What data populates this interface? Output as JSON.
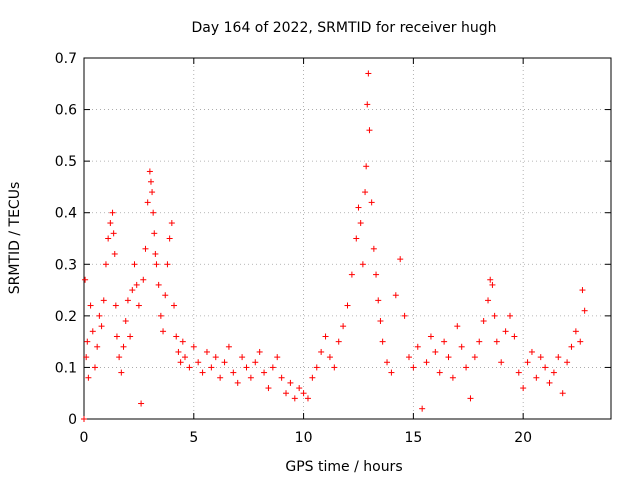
{
  "chart_data": {
    "type": "scatter",
    "title": "Day 164 of 2022, SRMTID for receiver hugh",
    "xlabel": "GPS time / hours",
    "ylabel": "SRMTID / TECUs",
    "xlim": [
      0,
      24
    ],
    "ylim": [
      0,
      0.7
    ],
    "xticks": [
      0,
      5,
      10,
      15,
      20
    ],
    "yticks": [
      0,
      0.1,
      0.2,
      0.3,
      0.4,
      0.5,
      0.6,
      0.7
    ],
    "xtick_labels": [
      "0",
      "5",
      "10",
      "15",
      "20"
    ],
    "ytick_labels": [
      "0",
      "0.1",
      "0.2",
      "0.3",
      "0.4",
      "0.5",
      "0.6",
      "0.7"
    ],
    "grid": true,
    "marker": "+",
    "color": "#ff0000",
    "series": [
      {
        "name": "SRMTID",
        "x": [
          0.0,
          0.05,
          0.1,
          0.15,
          0.2,
          0.3,
          0.4,
          0.5,
          0.6,
          0.7,
          0.8,
          0.9,
          1.0,
          1.1,
          1.2,
          1.3,
          1.35,
          1.4,
          1.45,
          1.5,
          1.6,
          1.7,
          1.8,
          1.9,
          2.0,
          2.1,
          2.2,
          2.3,
          2.4,
          2.5,
          2.6,
          2.7,
          2.8,
          2.9,
          3.0,
          3.05,
          3.1,
          3.15,
          3.2,
          3.25,
          3.3,
          3.4,
          3.5,
          3.6,
          3.7,
          3.8,
          3.9,
          4.0,
          4.1,
          4.2,
          4.3,
          4.4,
          4.5,
          4.6,
          4.8,
          5.0,
          5.2,
          5.4,
          5.6,
          5.8,
          6.0,
          6.2,
          6.4,
          6.6,
          6.8,
          7.0,
          7.2,
          7.4,
          7.6,
          7.8,
          8.0,
          8.2,
          8.4,
          8.6,
          8.8,
          9.0,
          9.2,
          9.4,
          9.6,
          9.8,
          10.0,
          10.2,
          10.4,
          10.6,
          10.8,
          11.0,
          11.2,
          11.4,
          11.6,
          11.8,
          12.0,
          12.2,
          12.4,
          12.5,
          12.6,
          12.7,
          12.8,
          12.85,
          12.9,
          12.95,
          13.0,
          13.1,
          13.2,
          13.3,
          13.4,
          13.5,
          13.6,
          13.8,
          14.0,
          14.2,
          14.4,
          14.6,
          14.8,
          15.0,
          15.2,
          15.4,
          15.6,
          15.8,
          16.0,
          16.2,
          16.4,
          16.6,
          16.8,
          17.0,
          17.2,
          17.4,
          17.6,
          17.8,
          18.0,
          18.2,
          18.4,
          18.5,
          18.6,
          18.7,
          18.8,
          19.0,
          19.2,
          19.4,
          19.6,
          19.8,
          20.0,
          20.2,
          20.4,
          20.6,
          20.8,
          21.0,
          21.2,
          21.4,
          21.6,
          21.8,
          22.0,
          22.2,
          22.4,
          22.6,
          22.7,
          22.8
        ],
        "y": [
          0.0,
          0.27,
          0.12,
          0.15,
          0.08,
          0.22,
          0.17,
          0.1,
          0.14,
          0.2,
          0.18,
          0.23,
          0.3,
          0.35,
          0.38,
          0.4,
          0.36,
          0.32,
          0.22,
          0.16,
          0.12,
          0.09,
          0.14,
          0.19,
          0.23,
          0.16,
          0.25,
          0.3,
          0.26,
          0.22,
          0.03,
          0.27,
          0.33,
          0.42,
          0.48,
          0.46,
          0.44,
          0.4,
          0.36,
          0.32,
          0.3,
          0.26,
          0.2,
          0.17,
          0.24,
          0.3,
          0.35,
          0.38,
          0.22,
          0.16,
          0.13,
          0.11,
          0.15,
          0.12,
          0.1,
          0.14,
          0.11,
          0.09,
          0.13,
          0.1,
          0.12,
          0.08,
          0.11,
          0.14,
          0.09,
          0.07,
          0.12,
          0.1,
          0.08,
          0.11,
          0.13,
          0.09,
          0.06,
          0.1,
          0.12,
          0.08,
          0.05,
          0.07,
          0.04,
          0.06,
          0.05,
          0.04,
          0.08,
          0.1,
          0.13,
          0.16,
          0.12,
          0.1,
          0.15,
          0.18,
          0.22,
          0.28,
          0.35,
          0.41,
          0.38,
          0.3,
          0.44,
          0.49,
          0.61,
          0.67,
          0.56,
          0.42,
          0.33,
          0.28,
          0.23,
          0.19,
          0.15,
          0.11,
          0.09,
          0.24,
          0.31,
          0.2,
          0.12,
          0.1,
          0.14,
          0.02,
          0.11,
          0.16,
          0.13,
          0.09,
          0.15,
          0.12,
          0.08,
          0.18,
          0.14,
          0.1,
          0.04,
          0.12,
          0.15,
          0.19,
          0.23,
          0.27,
          0.26,
          0.2,
          0.15,
          0.11,
          0.17,
          0.2,
          0.16,
          0.09,
          0.06,
          0.11,
          0.13,
          0.08,
          0.12,
          0.1,
          0.07,
          0.09,
          0.12,
          0.05,
          0.11,
          0.14,
          0.17,
          0.15,
          0.25,
          0.21
        ]
      }
    ]
  }
}
